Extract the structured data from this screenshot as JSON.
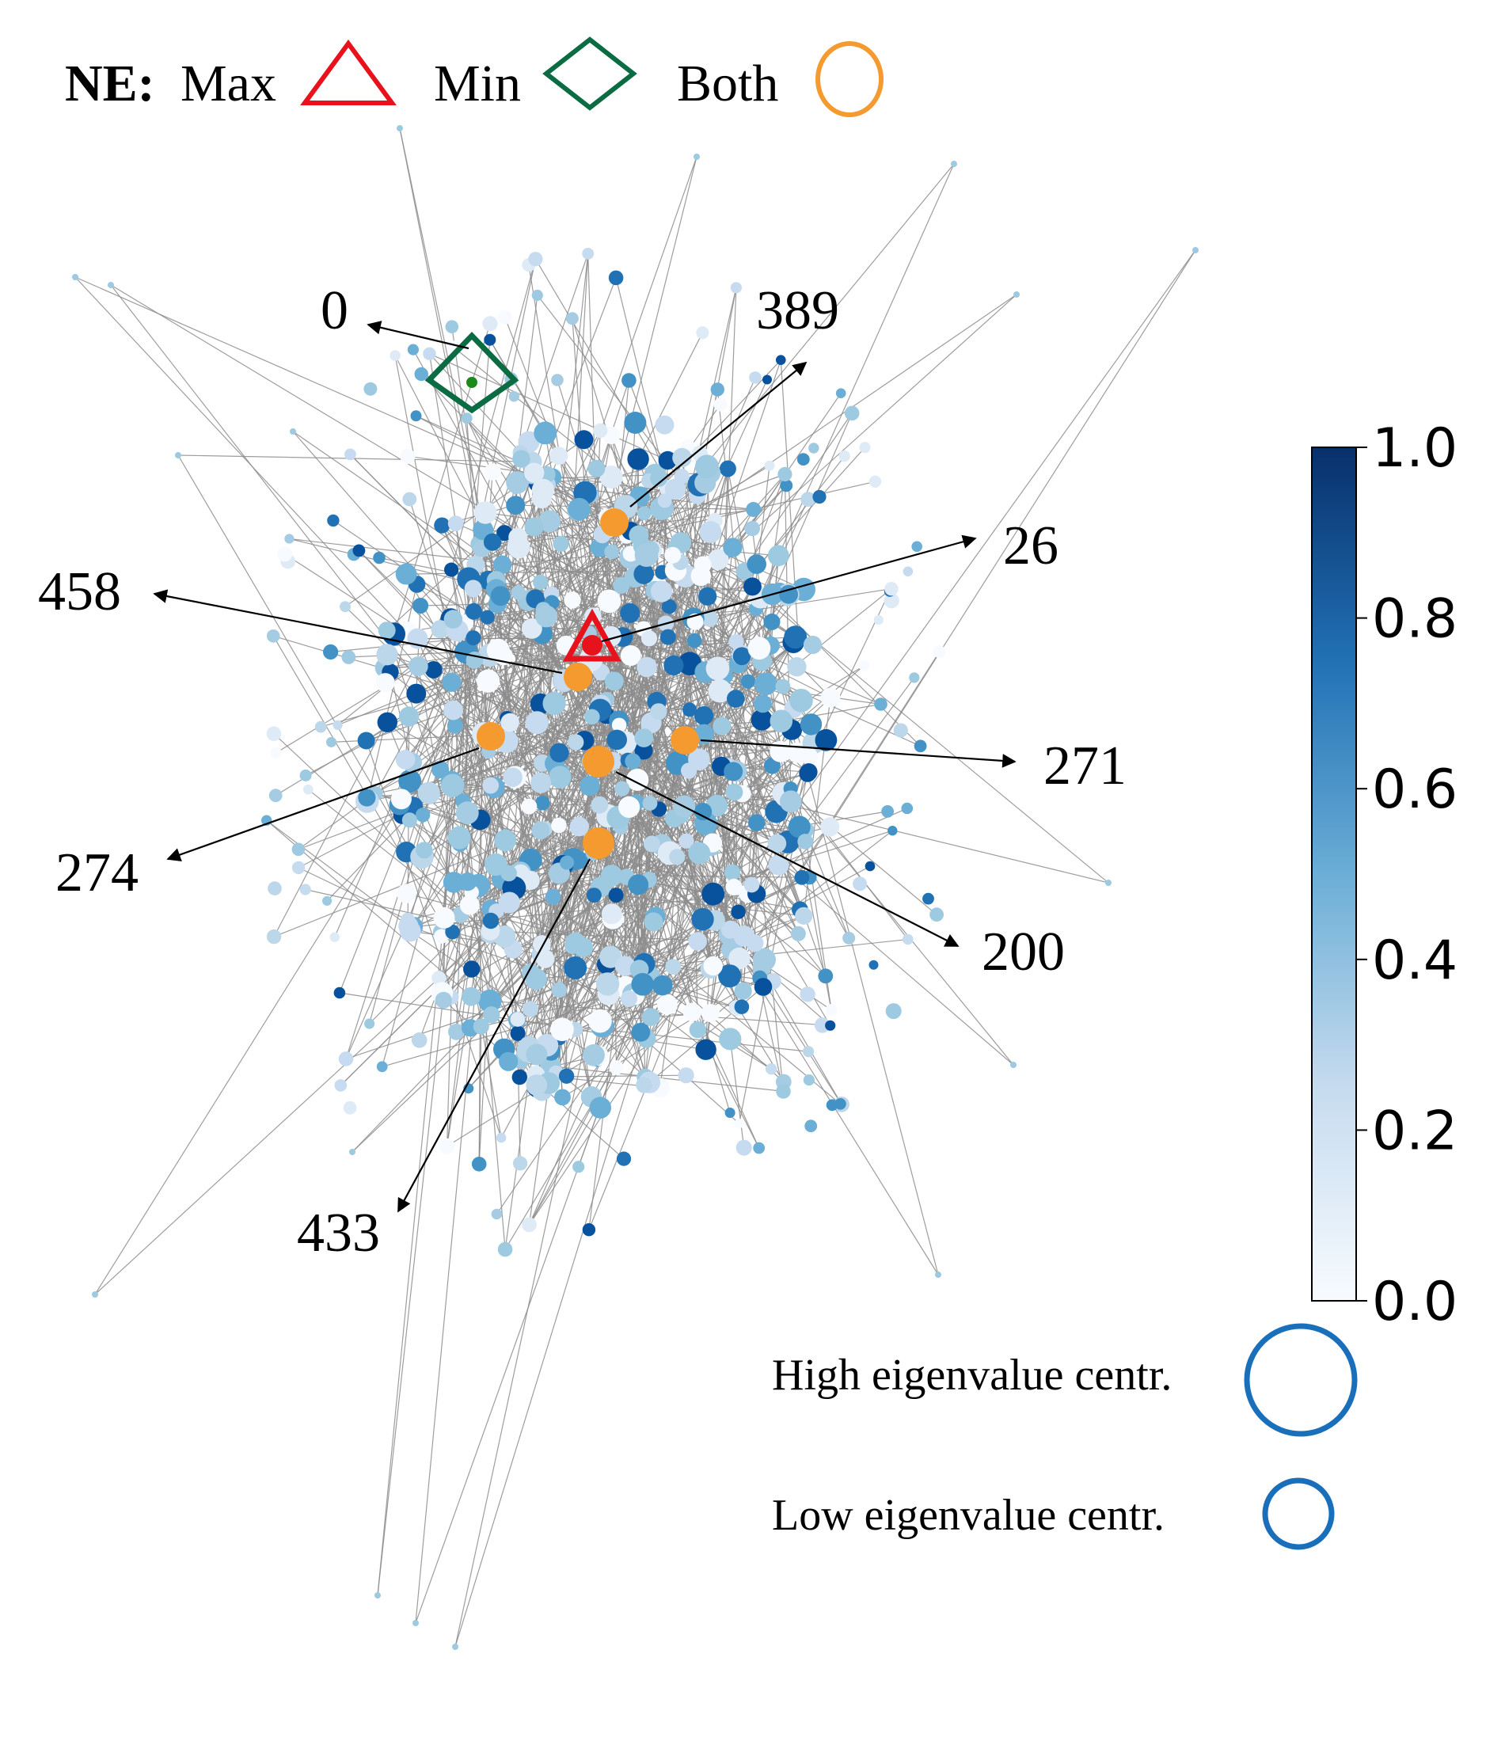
{
  "legend": {
    "prefix": "NE:",
    "max_label": "Max",
    "min_label": "Min",
    "both_label": "Both",
    "max_color": "#e8121c",
    "min_color": "#0b6b43",
    "both_color": "#f59a2f"
  },
  "size_legend": {
    "high_label": "High eigenvalue centr.",
    "low_label": "Low eigenvalue centr.",
    "circle_color": "#1a6fbb"
  },
  "colorbar": {
    "ticks": [
      "0.0",
      "0.2",
      "0.4",
      "0.6",
      "0.8",
      "1.0"
    ],
    "min": 0.0,
    "max": 1.0,
    "colormap": "Blues"
  },
  "annotations": {
    "n0": "0",
    "n389": "389",
    "n26": "26",
    "n458": "458",
    "n271": "271",
    "n274": "274",
    "n200": "200",
    "n433": "433"
  },
  "colors": {
    "edge": "#8c8c8c",
    "arrow": "#000000",
    "node_min_fill": "#1a8a1a",
    "node_max_fill": "#e8121c"
  }
}
